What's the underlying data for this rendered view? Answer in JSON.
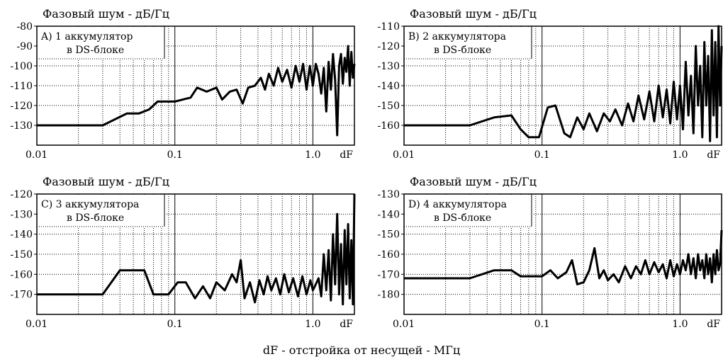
{
  "xlabel": "dF - отстройка от несущей - МГц",
  "chart_data": [
    {
      "type": "line",
      "title": "Фазовый шум - дБ/Гц",
      "label_line1": "A) 1 аккумулятор",
      "label_line2": "в DS-блоке",
      "x_scale": "log",
      "xlim": [
        0.01,
        2.0
      ],
      "ylim": [
        -140,
        -80
      ],
      "x_ticks": [
        {
          "v": 0.01,
          "label": "0.01"
        },
        {
          "v": 0.1,
          "label": "0.1"
        },
        {
          "v": 1.0,
          "label": "1.0"
        },
        {
          "v": 2.0,
          "label": "dF"
        }
      ],
      "y_ticks": [
        {
          "v": -80,
          "label": "-80"
        },
        {
          "v": -90,
          "label": "-90"
        },
        {
          "v": -100,
          "label": "-100"
        },
        {
          "v": -110,
          "label": "-110"
        },
        {
          "v": -120,
          "label": "-120"
        },
        {
          "v": -130,
          "label": "-130"
        }
      ],
      "grid": true,
      "points": [
        [
          0.01,
          -130
        ],
        [
          0.03,
          -130
        ],
        [
          0.045,
          -124
        ],
        [
          0.055,
          -124
        ],
        [
          0.065,
          -122
        ],
        [
          0.075,
          -118
        ],
        [
          0.1,
          -118
        ],
        [
          0.13,
          -116
        ],
        [
          0.145,
          -111
        ],
        [
          0.17,
          -113
        ],
        [
          0.2,
          -111
        ],
        [
          0.22,
          -117
        ],
        [
          0.25,
          -113
        ],
        [
          0.28,
          -112
        ],
        [
          0.31,
          -119
        ],
        [
          0.34,
          -111
        ],
        [
          0.38,
          -110
        ],
        [
          0.42,
          -106
        ],
        [
          0.45,
          -112
        ],
        [
          0.48,
          -104
        ],
        [
          0.52,
          -110
        ],
        [
          0.56,
          -101
        ],
        [
          0.6,
          -108
        ],
        [
          0.65,
          -102
        ],
        [
          0.7,
          -111
        ],
        [
          0.75,
          -100
        ],
        [
          0.8,
          -108
        ],
        [
          0.85,
          -99
        ],
        [
          0.9,
          -112
        ],
        [
          0.95,
          -100
        ],
        [
          1.0,
          -110
        ],
        [
          1.05,
          -99
        ],
        [
          1.1,
          -104
        ],
        [
          1.15,
          -114
        ],
        [
          1.2,
          -101
        ],
        [
          1.25,
          -123
        ],
        [
          1.3,
          -98
        ],
        [
          1.35,
          -112
        ],
        [
          1.4,
          -94
        ],
        [
          1.45,
          -107
        ],
        [
          1.5,
          -135
        ],
        [
          1.55,
          -100
        ],
        [
          1.6,
          -94
        ],
        [
          1.65,
          -109
        ],
        [
          1.7,
          -96
        ],
        [
          1.75,
          -103
        ],
        [
          1.8,
          -90
        ],
        [
          1.85,
          -110
        ],
        [
          1.9,
          -93
        ],
        [
          1.95,
          -106
        ],
        [
          2.0,
          -99
        ]
      ]
    },
    {
      "type": "line",
      "title": "Фазовый шум - дБ/Гц",
      "label_line1": "B) 2 аккумулятора",
      "label_line2": "в DS-блоке",
      "x_scale": "log",
      "xlim": [
        0.01,
        2.0
      ],
      "ylim": [
        -170,
        -110
      ],
      "x_ticks": [
        {
          "v": 0.01,
          "label": "0.01"
        },
        {
          "v": 0.1,
          "label": "0.1"
        },
        {
          "v": 1.0,
          "label": "1.0"
        },
        {
          "v": 2.0,
          "label": "dF"
        }
      ],
      "y_ticks": [
        {
          "v": -110,
          "label": "-110"
        },
        {
          "v": -120,
          "label": "-120"
        },
        {
          "v": -130,
          "label": "-130"
        },
        {
          "v": -140,
          "label": "-140"
        },
        {
          "v": -150,
          "label": "-150"
        },
        {
          "v": -160,
          "label": "-160"
        }
      ],
      "grid": true,
      "points": [
        [
          0.01,
          -160
        ],
        [
          0.03,
          -160
        ],
        [
          0.045,
          -156
        ],
        [
          0.06,
          -155
        ],
        [
          0.07,
          -162
        ],
        [
          0.08,
          -166
        ],
        [
          0.095,
          -166
        ],
        [
          0.11,
          -151
        ],
        [
          0.125,
          -150
        ],
        [
          0.145,
          -164
        ],
        [
          0.16,
          -166
        ],
        [
          0.18,
          -156
        ],
        [
          0.2,
          -162
        ],
        [
          0.22,
          -154
        ],
        [
          0.25,
          -163
        ],
        [
          0.28,
          -154
        ],
        [
          0.31,
          -158
        ],
        [
          0.34,
          -152
        ],
        [
          0.38,
          -160
        ],
        [
          0.42,
          -149
        ],
        [
          0.46,
          -158
        ],
        [
          0.5,
          -145
        ],
        [
          0.55,
          -157
        ],
        [
          0.6,
          -143
        ],
        [
          0.65,
          -158
        ],
        [
          0.7,
          -140
        ],
        [
          0.75,
          -156
        ],
        [
          0.8,
          -142
        ],
        [
          0.85,
          -159
        ],
        [
          0.9,
          -138
        ],
        [
          0.95,
          -157
        ],
        [
          1.0,
          -140
        ],
        [
          1.05,
          -162
        ],
        [
          1.1,
          -128
        ],
        [
          1.15,
          -155
        ],
        [
          1.2,
          -135
        ],
        [
          1.25,
          -164
        ],
        [
          1.3,
          -120
        ],
        [
          1.35,
          -150
        ],
        [
          1.4,
          -130
        ],
        [
          1.45,
          -166
        ],
        [
          1.5,
          -118
        ],
        [
          1.55,
          -150
        ],
        [
          1.6,
          -125
        ],
        [
          1.65,
          -168
        ],
        [
          1.7,
          -112
        ],
        [
          1.75,
          -155
        ],
        [
          1.8,
          -118
        ],
        [
          1.85,
          -166
        ],
        [
          1.9,
          -110
        ],
        [
          1.95,
          -150
        ],
        [
          2.0,
          -120
        ]
      ]
    },
    {
      "type": "line",
      "title": "Фазовый шум - дБ/Гц",
      "label_line1": "C) 3 аккумулятора",
      "label_line2": "в DS-блоке",
      "x_scale": "log",
      "xlim": [
        0.01,
        2.0
      ],
      "ylim": [
        -180,
        -120
      ],
      "x_ticks": [
        {
          "v": 0.01,
          "label": "0.01"
        },
        {
          "v": 0.1,
          "label": "0.1"
        },
        {
          "v": 1.0,
          "label": "1.0"
        },
        {
          "v": 2.0,
          "label": "dF"
        }
      ],
      "y_ticks": [
        {
          "v": -120,
          "label": "-120"
        },
        {
          "v": -130,
          "label": "-130"
        },
        {
          "v": -140,
          "label": "-140"
        },
        {
          "v": -150,
          "label": "-150"
        },
        {
          "v": -160,
          "label": "-160"
        },
        {
          "v": -170,
          "label": "-170"
        }
      ],
      "grid": true,
      "points": [
        [
          0.01,
          -170
        ],
        [
          0.03,
          -170
        ],
        [
          0.04,
          -158
        ],
        [
          0.06,
          -158
        ],
        [
          0.07,
          -170
        ],
        [
          0.09,
          -170
        ],
        [
          0.105,
          -164
        ],
        [
          0.12,
          -164
        ],
        [
          0.14,
          -172
        ],
        [
          0.16,
          -166
        ],
        [
          0.18,
          -172
        ],
        [
          0.2,
          -164
        ],
        [
          0.23,
          -168
        ],
        [
          0.26,
          -160
        ],
        [
          0.28,
          -164
        ],
        [
          0.3,
          -153
        ],
        [
          0.32,
          -172
        ],
        [
          0.35,
          -164
        ],
        [
          0.38,
          -174
        ],
        [
          0.41,
          -163
        ],
        [
          0.44,
          -170
        ],
        [
          0.47,
          -161
        ],
        [
          0.5,
          -168
        ],
        [
          0.54,
          -162
        ],
        [
          0.58,
          -170
        ],
        [
          0.62,
          -160
        ],
        [
          0.67,
          -169
        ],
        [
          0.72,
          -162
        ],
        [
          0.78,
          -171
        ],
        [
          0.84,
          -161
        ],
        [
          0.9,
          -170
        ],
        [
          0.96,
          -163
        ],
        [
          1.0,
          -168
        ],
        [
          1.05,
          -165
        ],
        [
          1.1,
          -162
        ],
        [
          1.15,
          -171
        ],
        [
          1.2,
          -150
        ],
        [
          1.25,
          -168
        ],
        [
          1.3,
          -148
        ],
        [
          1.35,
          -173
        ],
        [
          1.4,
          -140
        ],
        [
          1.45,
          -165
        ],
        [
          1.5,
          -130
        ],
        [
          1.55,
          -170
        ],
        [
          1.6,
          -145
        ],
        [
          1.65,
          -175
        ],
        [
          1.7,
          -138
        ],
        [
          1.75,
          -165
        ],
        [
          1.8,
          -135
        ],
        [
          1.85,
          -172
        ],
        [
          1.9,
          -143
        ],
        [
          1.95,
          -175
        ],
        [
          2.0,
          -120
        ]
      ]
    },
    {
      "type": "line",
      "title": "Фазовый шум - дБ/Гц",
      "label_line1": "D) 4 аккумулятора",
      "label_line2": "в DS-блоке",
      "x_scale": "log",
      "xlim": [
        0.01,
        2.0
      ],
      "ylim": [
        -190,
        -130
      ],
      "x_ticks": [
        {
          "v": 0.01,
          "label": "0.01"
        },
        {
          "v": 0.1,
          "label": "0.1"
        },
        {
          "v": 1.0,
          "label": "1.0"
        },
        {
          "v": 2.0,
          "label": "dF"
        }
      ],
      "y_ticks": [
        {
          "v": -130,
          "label": "-130"
        },
        {
          "v": -140,
          "label": "-140"
        },
        {
          "v": -150,
          "label": "-150"
        },
        {
          "v": -160,
          "label": "-160"
        },
        {
          "v": -170,
          "label": "-170"
        },
        {
          "v": -180,
          "label": "-180"
        }
      ],
      "grid": true,
      "points": [
        [
          0.01,
          -172
        ],
        [
          0.03,
          -172
        ],
        [
          0.045,
          -168
        ],
        [
          0.06,
          -168
        ],
        [
          0.07,
          -171
        ],
        [
          0.1,
          -171
        ],
        [
          0.115,
          -168
        ],
        [
          0.13,
          -172
        ],
        [
          0.15,
          -169
        ],
        [
          0.165,
          -163
        ],
        [
          0.18,
          -175
        ],
        [
          0.2,
          -174
        ],
        [
          0.22,
          -168
        ],
        [
          0.24,
          -157
        ],
        [
          0.26,
          -172
        ],
        [
          0.28,
          -168
        ],
        [
          0.3,
          -173
        ],
        [
          0.33,
          -170
        ],
        [
          0.36,
          -174
        ],
        [
          0.4,
          -166
        ],
        [
          0.44,
          -172
        ],
        [
          0.48,
          -166
        ],
        [
          0.52,
          -170
        ],
        [
          0.56,
          -163
        ],
        [
          0.6,
          -170
        ],
        [
          0.65,
          -164
        ],
        [
          0.7,
          -169
        ],
        [
          0.75,
          -165
        ],
        [
          0.8,
          -172
        ],
        [
          0.85,
          -163
        ],
        [
          0.9,
          -171
        ],
        [
          0.95,
          -165
        ],
        [
          1.0,
          -170
        ],
        [
          1.05,
          -163
        ],
        [
          1.1,
          -168
        ],
        [
          1.15,
          -160
        ],
        [
          1.2,
          -170
        ],
        [
          1.25,
          -162
        ],
        [
          1.3,
          -172
        ],
        [
          1.35,
          -160
        ],
        [
          1.4,
          -168
        ],
        [
          1.45,
          -163
        ],
        [
          1.5,
          -172
        ],
        [
          1.55,
          -160
        ],
        [
          1.6,
          -170
        ],
        [
          1.65,
          -162
        ],
        [
          1.7,
          -174
        ],
        [
          1.75,
          -160
        ],
        [
          1.8,
          -170
        ],
        [
          1.85,
          -158
        ],
        [
          1.9,
          -168
        ],
        [
          1.95,
          -165
        ],
        [
          2.0,
          -148
        ]
      ]
    }
  ]
}
